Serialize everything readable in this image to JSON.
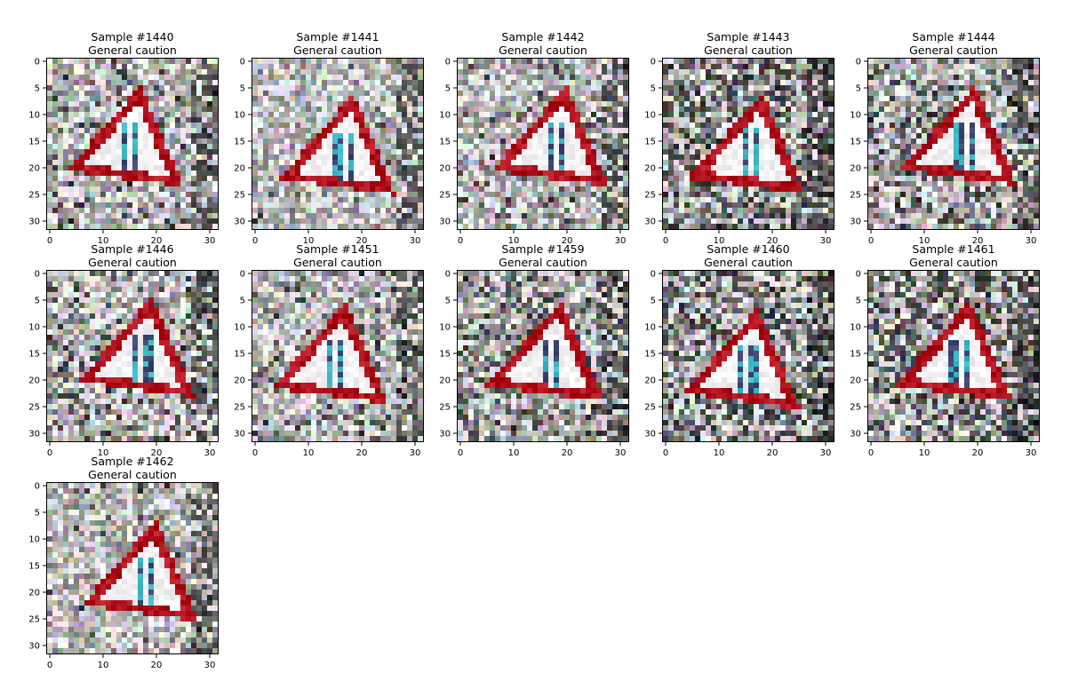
{
  "figure": {
    "panels": [
      {
        "sample": "Sample #1440",
        "label": "General caution",
        "seed": 1440
      },
      {
        "sample": "Sample #1441",
        "label": "General caution",
        "seed": 1441
      },
      {
        "sample": "Sample #1442",
        "label": "General caution",
        "seed": 1442
      },
      {
        "sample": "Sample #1443",
        "label": "General caution",
        "seed": 1443
      },
      {
        "sample": "Sample #1444",
        "label": "General caution",
        "seed": 1444
      },
      {
        "sample": "Sample #1446",
        "label": "General caution",
        "seed": 1446
      },
      {
        "sample": "Sample #1451",
        "label": "General caution",
        "seed": 1451
      },
      {
        "sample": "Sample #1459",
        "label": "General caution",
        "seed": 1459
      },
      {
        "sample": "Sample #1460",
        "label": "General caution",
        "seed": 1460
      },
      {
        "sample": "Sample #1461",
        "label": "General caution",
        "seed": 1461
      },
      {
        "sample": "Sample #1462",
        "label": "General caution",
        "seed": 1462
      }
    ],
    "x_ticks": [
      "0",
      "10",
      "20",
      "30"
    ],
    "y_ticks": [
      "0",
      "5",
      "10",
      "15",
      "20",
      "25",
      "30"
    ],
    "image_size": 32,
    "colors": {
      "sign_red": "#b0101c",
      "sign_white": "#f4f2f4",
      "symbol_cyan": "#3fb8c8"
    }
  }
}
